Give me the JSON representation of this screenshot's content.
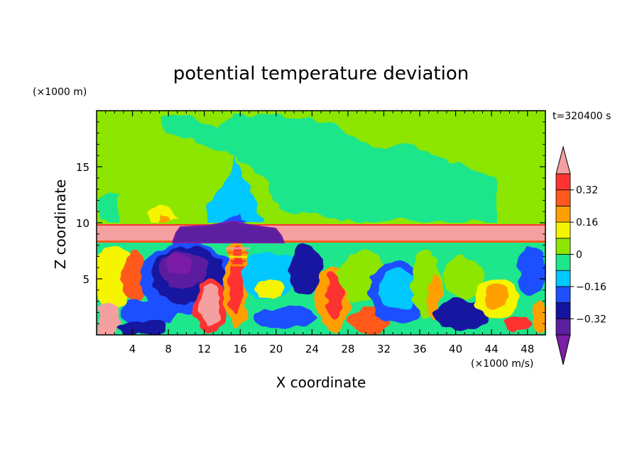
{
  "chart_data": {
    "type": "heatmap",
    "title": "potential temperature deviation",
    "time_label": "t=320400 s",
    "xlabel": "X coordinate",
    "ylabel": "Z coordinate",
    "xunit": "(×1000 m/s)",
    "yunit": "(×1000 m)",
    "xlim": [
      0,
      50
    ],
    "ylim": [
      0,
      20
    ],
    "xticks": [
      4,
      8,
      12,
      16,
      20,
      24,
      28,
      32,
      36,
      40,
      44,
      48
    ],
    "yticks": [
      5,
      10,
      15
    ],
    "colorbar": {
      "levels": [
        -0.4,
        -0.32,
        -0.24,
        -0.16,
        -0.08,
        0,
        0.08,
        0.16,
        0.24,
        0.32,
        0.4
      ],
      "tick_labels": [
        "0.32",
        "0.16",
        "0",
        "−0.16",
        "−0.32"
      ],
      "tick_values": [
        0.32,
        0.16,
        0,
        -0.16,
        -0.32
      ],
      "colors": [
        "#7a1fa6",
        "#5c1fa0",
        "#1414a0",
        "#1e50ff",
        "#00c8ff",
        "#1ee68c",
        "#8ce600",
        "#f5f500",
        "#ffa000",
        "#ff5a1e",
        "#ff3232",
        "#f5a0a0"
      ]
    }
  }
}
